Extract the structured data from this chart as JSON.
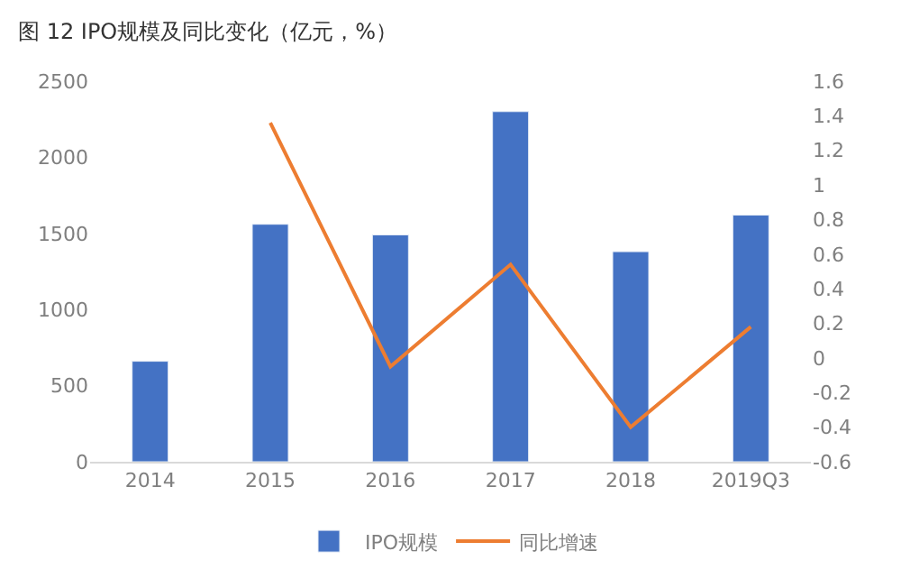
{
  "chart_data": {
    "type": "bar",
    "title": "图 12 IPO规模及同比变化（亿元，%）",
    "categories": [
      "2014",
      "2015",
      "2016",
      "2017",
      "2018",
      "2019Q3"
    ],
    "series": [
      {
        "name": "IPO规模",
        "color": "#4472c4",
        "values": [
          660,
          1560,
          1490,
          2300,
          1380,
          1620
        ]
      },
      {
        "name": "同比增速",
        "type": "line",
        "axis": "y2",
        "color": "#ed7d31",
        "marker": "none",
        "values": [
          null,
          1.36,
          -0.05,
          0.54,
          -0.4,
          0.18
        ]
      }
    ],
    "ylim": [
      0,
      2500
    ],
    "yticks": [
      0,
      500,
      1000,
      1500,
      2000,
      2500
    ],
    "y2lim": [
      -0.6,
      1.6
    ],
    "y2ticks": [
      -0.6,
      -0.4,
      -0.2,
      0,
      0.2,
      0.4,
      0.6,
      0.8,
      1,
      1.2,
      1.4,
      1.6
    ],
    "legend": "bottom",
    "grid": false
  }
}
